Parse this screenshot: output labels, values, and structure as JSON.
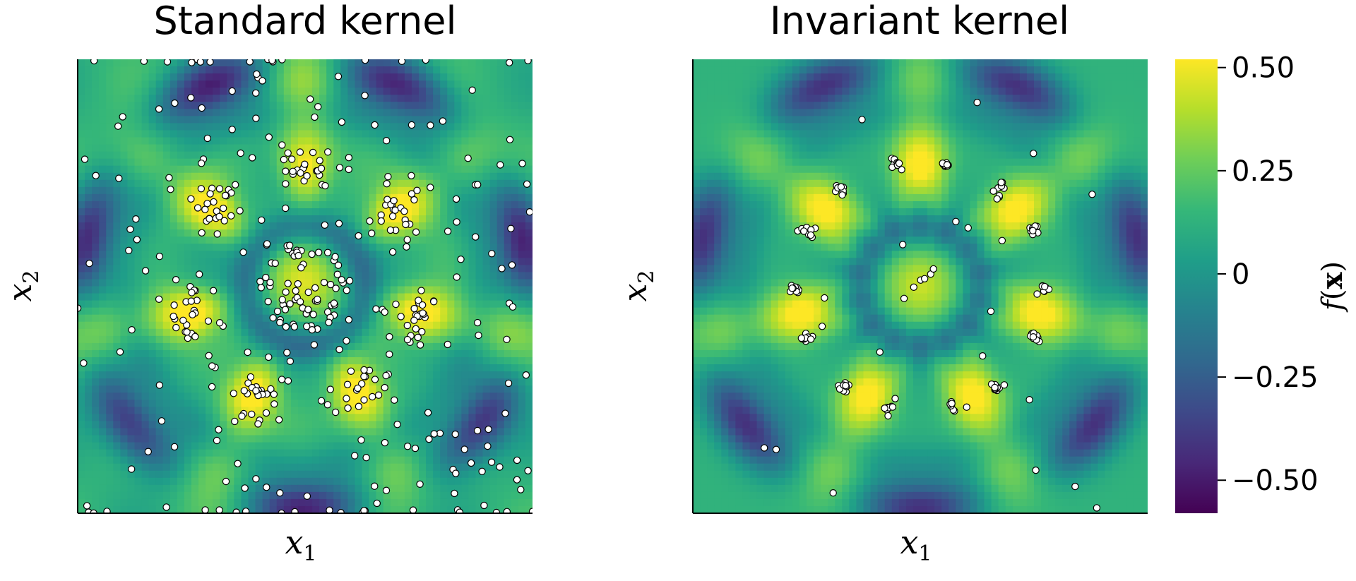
{
  "chart_data": [
    {
      "type": "heatmap",
      "title": "Standard kernel",
      "xlabel": "x",
      "xlabel_sub": "1",
      "ylabel": "x",
      "ylabel_sub": "2",
      "xlim": [
        -1,
        1
      ],
      "ylim": [
        -1,
        1
      ],
      "grid": false,
      "colormap": "viridis",
      "observations": "dense uniform samples plus clusters on the seven-fold high-value ring and centre"
    },
    {
      "type": "heatmap",
      "title": "Invariant kernel",
      "xlabel": "x",
      "xlabel_sub": "1",
      "ylabel": "x",
      "ylabel_sub": "2",
      "xlim": [
        -1,
        1
      ],
      "ylim": [
        -1,
        1
      ],
      "grid": false,
      "colormap": "viridis",
      "observations": "sparse samples concentrated in tight clusters on the ring maxima"
    }
  ],
  "colorbar": {
    "label": "f(x)",
    "label_func": "f",
    "label_arg": "x",
    "range": [
      -0.58,
      0.52
    ],
    "ticks": [
      0.5,
      0.25,
      0,
      -0.25,
      -0.5
    ],
    "tick_labels": [
      "0.50",
      "0.25",
      "0",
      "−0.25",
      "−0.50"
    ],
    "colors": [
      "#440154",
      "#482878",
      "#3e4989",
      "#31688e",
      "#26828e",
      "#1f9e89",
      "#35b779",
      "#6ece58",
      "#b5de2b",
      "#fde725"
    ]
  }
}
